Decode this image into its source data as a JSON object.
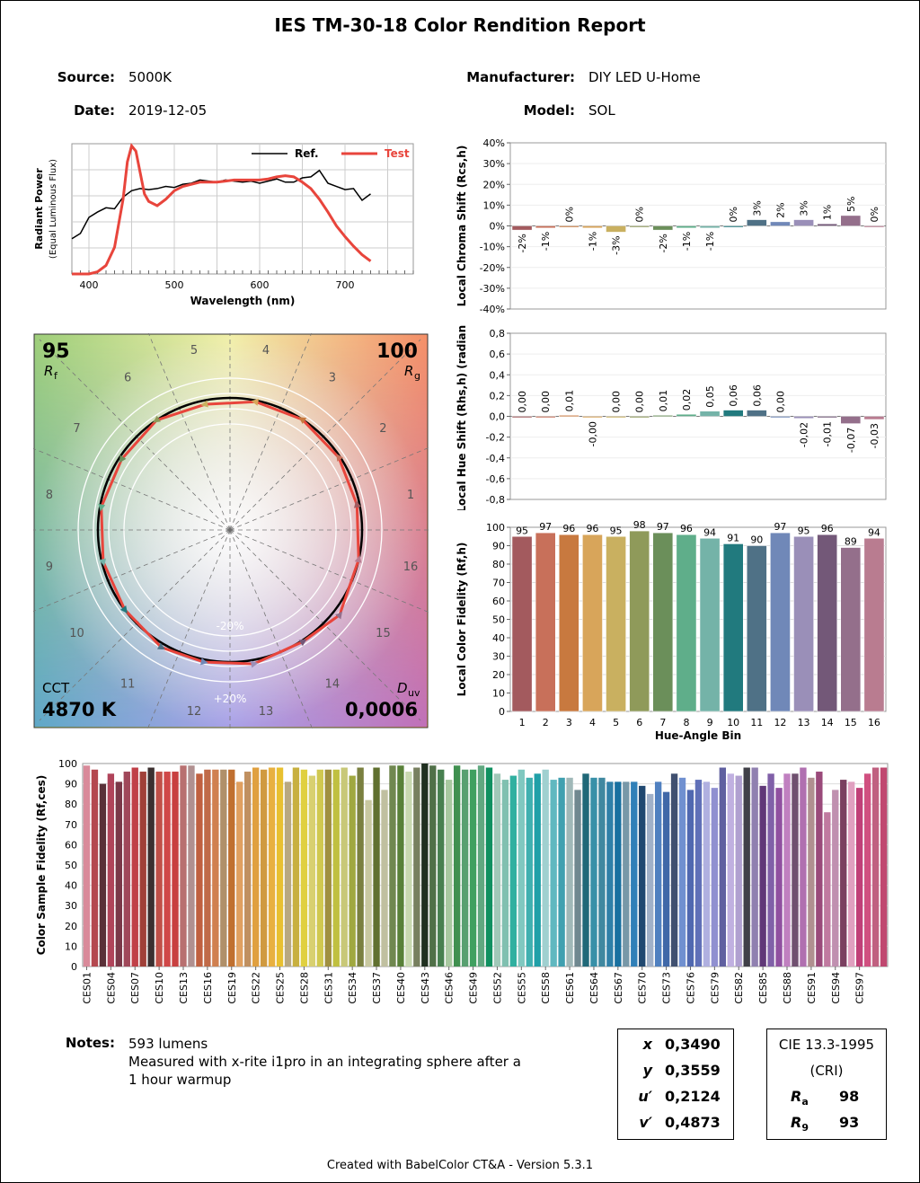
{
  "report": {
    "title": "IES TM-30-18 Color Rendition Report",
    "source_label": "Source:",
    "source": "5000K",
    "date_label": "Date:",
    "date": "2019-12-05",
    "manufacturer_label": "Manufacturer:",
    "manufacturer": "DIY LED U-Home",
    "model_label": "Model:",
    "model": "SOL",
    "notes_label": "Notes:",
    "notes": [
      "593 lumens",
      "Measured with x-rite i1pro in an integrating sphere after a",
      "1 hour warmup"
    ],
    "footer": "Created with BabelColor CT&A - Version 5.3.1"
  },
  "metrics": {
    "rf": "95",
    "rf_label": "R",
    "rf_sub": "f",
    "rg": "100",
    "rg_label": "R",
    "rg_sub": "g",
    "cct_label": "CCT",
    "cct": "4870 K",
    "duv_label": "D",
    "duv_sub": "uv",
    "duv": "0,0006",
    "x_label": "x",
    "x": "0,3490",
    "y_label": "y",
    "y": "0,3559",
    "u_label": "u′",
    "u": "0,2124",
    "v_label": "v′",
    "v": "0,4873",
    "cri_title": "CIE 13.3-1995",
    "cri_sub": "(CRI)",
    "ra_label": "R",
    "ra_sub": "a",
    "ra": "98",
    "r9_label": "R",
    "r9_sub": "9",
    "r9": "93"
  },
  "chart_data": [
    {
      "type": "line",
      "id": "spd",
      "xlabel": "Wavelength (nm)",
      "ylabel": "Radiant Power",
      "ylabel2": "(Equal Luminous Flux)",
      "xlim": [
        380,
        780
      ],
      "xticks": [
        400,
        500,
        600,
        700
      ],
      "series": [
        {
          "name": "Ref.",
          "color": "#000000",
          "x": [
            380,
            390,
            400,
            410,
            420,
            430,
            440,
            450,
            460,
            470,
            480,
            490,
            500,
            510,
            520,
            530,
            540,
            550,
            560,
            570,
            580,
            590,
            600,
            610,
            620,
            630,
            640,
            650,
            660,
            670,
            680,
            690,
            700,
            710,
            720,
            730
          ],
          "y": [
            0.33,
            0.38,
            0.53,
            0.58,
            0.62,
            0.61,
            0.72,
            0.78,
            0.8,
            0.79,
            0.8,
            0.82,
            0.81,
            0.84,
            0.85,
            0.88,
            0.87,
            0.86,
            0.88,
            0.87,
            0.86,
            0.87,
            0.85,
            0.87,
            0.89,
            0.86,
            0.86,
            0.9,
            0.91,
            0.97,
            0.85,
            0.82,
            0.79,
            0.8,
            0.69,
            0.75
          ]
        },
        {
          "name": "Test",
          "color": "#e8453c",
          "x": [
            380,
            400,
            410,
            420,
            430,
            440,
            445,
            450,
            455,
            460,
            465,
            470,
            480,
            490,
            500,
            510,
            520,
            530,
            540,
            550,
            560,
            570,
            580,
            590,
            600,
            610,
            620,
            630,
            640,
            650,
            660,
            670,
            680,
            690,
            700,
            710,
            720,
            730
          ],
          "y": [
            0.0,
            0.0,
            0.02,
            0.08,
            0.25,
            0.7,
            1.05,
            1.2,
            1.15,
            0.95,
            0.75,
            0.68,
            0.64,
            0.7,
            0.78,
            0.82,
            0.84,
            0.86,
            0.86,
            0.86,
            0.87,
            0.88,
            0.88,
            0.88,
            0.88,
            0.89,
            0.91,
            0.92,
            0.91,
            0.86,
            0.8,
            0.7,
            0.58,
            0.45,
            0.35,
            0.26,
            0.18,
            0.12
          ]
        }
      ]
    },
    {
      "type": "bar",
      "id": "chroma",
      "ylabel": "Local Chroma Shift (Rcs,h)",
      "ylim": [
        -40,
        40
      ],
      "yticks": [
        "40%",
        "30%",
        "20%",
        "10%",
        "0%",
        "-10%",
        "-20%",
        "-30%",
        "-40%"
      ],
      "categories": [
        "1",
        "2",
        "3",
        "4",
        "5",
        "6",
        "7",
        "8",
        "9",
        "10",
        "11",
        "12",
        "13",
        "14",
        "15",
        "16"
      ],
      "values": [
        -2,
        -1,
        0,
        -1,
        -3,
        0,
        -2,
        -1,
        -1,
        0,
        3,
        2,
        3,
        1,
        5,
        0
      ],
      "labels": [
        "-2%",
        "-1%",
        "0%",
        "-1%",
        "-3%",
        "0%",
        "-2%",
        "-1%",
        "-1%",
        "0%",
        "3%",
        "2%",
        "3%",
        "1%",
        "5%",
        "0%"
      ]
    },
    {
      "type": "bar",
      "id": "hue",
      "ylabel": "Local Hue Shift (Rhs,h) (radian)",
      "ylim": [
        -0.8,
        0.8
      ],
      "yticks": [
        "0,8",
        "0,6",
        "0,4",
        "0,2",
        "0,0",
        "-0,2",
        "-0,4",
        "-0,6",
        "-0,8"
      ],
      "categories": [
        "1",
        "2",
        "3",
        "4",
        "5",
        "6",
        "7",
        "8",
        "9",
        "10",
        "11",
        "12",
        "13",
        "14",
        "15",
        "16"
      ],
      "values": [
        0.0,
        0.0,
        0.01,
        0.0,
        0.0,
        0.0,
        0.01,
        0.02,
        0.05,
        0.06,
        0.06,
        0.0,
        -0.02,
        -0.01,
        -0.07,
        -0.03
      ],
      "labels": [
        "0,00",
        "0,00",
        "0,01",
        "-0,00",
        "0,00",
        "0,00",
        "0,01",
        "0,02",
        "0,05",
        "0,06",
        "0,06",
        "0,00",
        "-0,02",
        "-0,01",
        "-0,07",
        "-0,03"
      ]
    },
    {
      "type": "bar",
      "id": "fidelity",
      "ylabel": "Local Color Fidelity (Rf,h)",
      "xlabel": "Hue-Angle Bin",
      "ylim": [
        0,
        100
      ],
      "yticks": [
        "100",
        "90",
        "80",
        "70",
        "60",
        "50",
        "40",
        "30",
        "20",
        "10",
        "0"
      ],
      "categories": [
        "1",
        "2",
        "3",
        "4",
        "5",
        "6",
        "7",
        "8",
        "9",
        "10",
        "11",
        "12",
        "13",
        "14",
        "15",
        "16"
      ],
      "values": [
        95,
        97,
        96,
        96,
        95,
        98,
        97,
        96,
        94,
        91,
        90,
        97,
        95,
        96,
        89,
        94
      ]
    },
    {
      "type": "bar",
      "id": "ces",
      "ylabel": "Color Sample Fidelity (Rf,ces)",
      "ylim": [
        0,
        100
      ],
      "yticks": [
        "100",
        "90",
        "80",
        "70",
        "60",
        "50",
        "40",
        "30",
        "20",
        "10",
        "0"
      ],
      "tick_labels": [
        "CES01",
        "CES04",
        "CES07",
        "CES10",
        "CES13",
        "CES16",
        "CES19",
        "CES22",
        "CES25",
        "CES28",
        "CES31",
        "CES34",
        "CES37",
        "CES40",
        "CES43",
        "CES46",
        "CES49",
        "CES52",
        "CES55",
        "CES58",
        "CES61",
        "CES64",
        "CES67",
        "CES70",
        "CES73",
        "CES76",
        "CES79",
        "CES82",
        "CES85",
        "CES88",
        "CES91",
        "CES94",
        "CES97"
      ],
      "values": [
        99,
        97,
        90,
        95,
        91,
        96,
        98,
        96,
        98,
        96,
        96,
        96,
        99,
        99,
        95,
        97,
        97,
        97,
        97,
        91,
        96,
        98,
        97,
        98,
        98,
        91,
        98,
        97,
        94,
        97,
        97,
        97,
        98,
        94,
        98,
        82,
        98,
        87,
        99,
        99,
        96,
        98,
        100,
        99,
        97,
        92,
        99,
        97,
        97,
        99,
        98,
        95,
        92,
        94,
        97,
        93,
        95,
        97,
        92,
        93,
        93,
        87,
        95,
        93,
        93,
        91,
        91,
        91,
        91,
        89,
        85,
        91,
        86,
        95,
        93,
        87,
        92,
        91,
        88,
        98,
        95,
        94,
        98,
        98,
        89,
        95,
        88,
        95,
        95,
        98,
        93,
        96,
        76,
        87,
        92,
        91,
        88,
        95,
        98,
        98
      ]
    },
    {
      "type": "scatter",
      "id": "vector",
      "bin_labels": [
        "1",
        "2",
        "3",
        "4",
        "5",
        "6",
        "7",
        "8",
        "9",
        "10",
        "11",
        "12",
        "13",
        "14",
        "15",
        "16"
      ],
      "ring_labels": [
        "-20%",
        "+20%"
      ]
    }
  ],
  "colors": {
    "bins": [
      "#a35a5e",
      "#c8705a",
      "#c8793f",
      "#d8a55a",
      "#c9b060",
      "#8f9a5a",
      "#6b8f5a",
      "#5fae8a",
      "#74b3a8",
      "#217a7e",
      "#4f7186",
      "#7088b8",
      "#9a8fb8",
      "#735878",
      "#946f8b",
      "#b97c90"
    ],
    "ces": [
      "#d98a9a",
      "#b4484f",
      "#5a3038",
      "#b0445a",
      "#7a3848",
      "#a0485a",
      "#c04048",
      "#a04038",
      "#3c3030",
      "#c05048",
      "#d04848",
      "#c84040",
      "#b87070",
      "#b09090",
      "#c06040",
      "#c06a48",
      "#d08050",
      "#b0906a",
      "#c07030",
      "#e0a060",
      "#c09060",
      "#e0a040",
      "#d09a40",
      "#e8b040",
      "#e8c030",
      "#b8a880",
      "#c8b040",
      "#e0d040",
      "#d8d070",
      "#d0c850",
      "#a09040",
      "#c0c040",
      "#c8c878",
      "#a0a840",
      "#7a8040",
      "#c8c8a0",
      "#607030",
      "#c0c0a0",
      "#708850",
      "#588038",
      "#c8d8b0",
      "#788060",
      "#203020",
      "#507048",
      "#488050",
      "#a8c8a0",
      "#409050",
      "#58a070",
      "#40a060",
      "#60a880",
      "#109060",
      "#a0c8b8",
      "#80c0b0",
      "#30b0a0",
      "#80c8c0",
      "#40b0b0",
      "#20a0a8",
      "#a0d0d0",
      "#60b8c0",
      "#40a0b0",
      "#a0b8b8",
      "#708890",
      "#206878",
      "#3890a8",
      "#4088a0",
      "#3080a8",
      "#1870a0",
      "#7898a8",
      "#3080b8",
      "#204870",
      "#a0b0c8",
      "#5080c0",
      "#4068a8",
      "#405070",
      "#7090d0",
      "#5068b0",
      "#6070b8",
      "#b0b0e0",
      "#9090d0",
      "#6060a0",
      "#c0b0e0",
      "#b0a0d0",
      "#404048",
      "#9080b0",
      "#603878",
      "#8060a8",
      "#9050a0",
      "#c080c0",
      "#705070",
      "#b070b0",
      "#b09090",
      "#9a4a7a",
      "#c07aa0",
      "#c090b0",
      "#7a4060",
      "#e0a0c0",
      "#c04078",
      "#d05080",
      "#c06080",
      "#c04870"
    ],
    "test_line": "#e8453c",
    "ref_line": "#000000"
  }
}
